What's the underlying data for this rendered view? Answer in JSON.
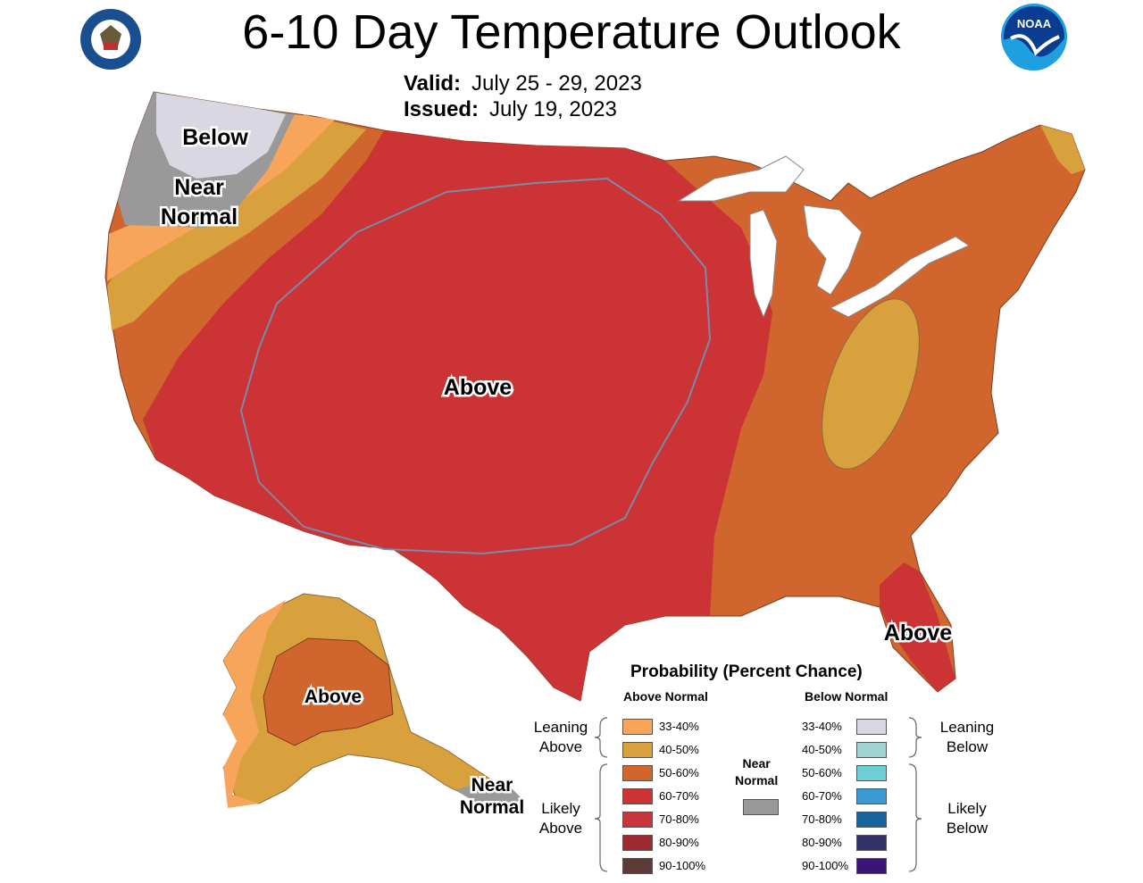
{
  "title": "6-10 Day Temperature Outlook",
  "valid_label": "Valid:",
  "valid_value": "July 25 - 29, 2023",
  "issued_label": "Issued:",
  "issued_value": "July 19, 2023",
  "logos": {
    "left": "commerce-seal-icon",
    "right": "noaa-logo-icon",
    "noaa_text": "NOAA"
  },
  "map_labels": {
    "nw_below": "Below",
    "nw_near_1": "Near",
    "nw_near_2": "Normal",
    "central_above": "Above",
    "florida_above": "Above",
    "alaska_above": "Above",
    "alaska_near_1": "Near",
    "alaska_near_2": "Normal"
  },
  "colors": {
    "above_33_40": "#f6a55a",
    "above_40_50": "#d9a13d",
    "above_50_60": "#d0662e",
    "above_60_70": "#cb3334",
    "above_70_80": "#c8353a",
    "above_80_90": "#9b2b31",
    "above_90_100": "#5e3a36",
    "near_normal": "#999999",
    "below_33_40": "#d9d8e2",
    "below_40_50": "#9fd6d3",
    "below_50_60": "#6ccfd8",
    "below_60_70": "#3a9ad4",
    "below_70_80": "#17659c",
    "below_80_90": "#313366",
    "below_90_100": "#3a1575"
  },
  "legend": {
    "title": "Probability (Percent Chance)",
    "above_header": "Above Normal",
    "below_header": "Below Normal",
    "above_rows": [
      "33-40%",
      "40-50%",
      "50-60%",
      "60-70%",
      "70-80%",
      "80-90%",
      "90-100%"
    ],
    "below_rows": [
      "33-40%",
      "40-50%",
      "50-60%",
      "60-70%",
      "70-80%",
      "80-90%",
      "90-100%"
    ],
    "leaning_above_1": "Leaning",
    "leaning_above_2": "Above",
    "likely_above_1": "Likely",
    "likely_above_2": "Above",
    "leaning_below_1": "Leaning",
    "leaning_below_2": "Below",
    "likely_below_1": "Likely",
    "likely_below_2": "Below",
    "near_1": "Near",
    "near_2": "Normal"
  }
}
